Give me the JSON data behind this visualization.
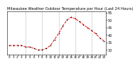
{
  "title": "Milwaukee Weather Outdoor Temperature per Hour (Last 24 Hours)",
  "hours": [
    0,
    1,
    2,
    3,
    4,
    5,
    6,
    7,
    8,
    9,
    10,
    11,
    12,
    13,
    14,
    15,
    16,
    17,
    18,
    19,
    20,
    21,
    22,
    23
  ],
  "temperatures": [
    33,
    33,
    33,
    33,
    32,
    32,
    31,
    30,
    30,
    31,
    33,
    37,
    41,
    46,
    50,
    52,
    51,
    49,
    47,
    45,
    43,
    41,
    38,
    36
  ],
  "line_color": "red",
  "marker_color": "black",
  "bg_color": "white",
  "ylim": [
    27,
    56
  ],
  "yticks": [
    30,
    35,
    40,
    45,
    50,
    55
  ],
  "ylabel_fontsize": 3.5,
  "xlabel_fontsize": 3.0,
  "title_fontsize": 3.8,
  "grid_color": "#999999",
  "grid_style": "--",
  "grid_xticks": [
    4,
    8,
    12,
    16,
    20
  ]
}
